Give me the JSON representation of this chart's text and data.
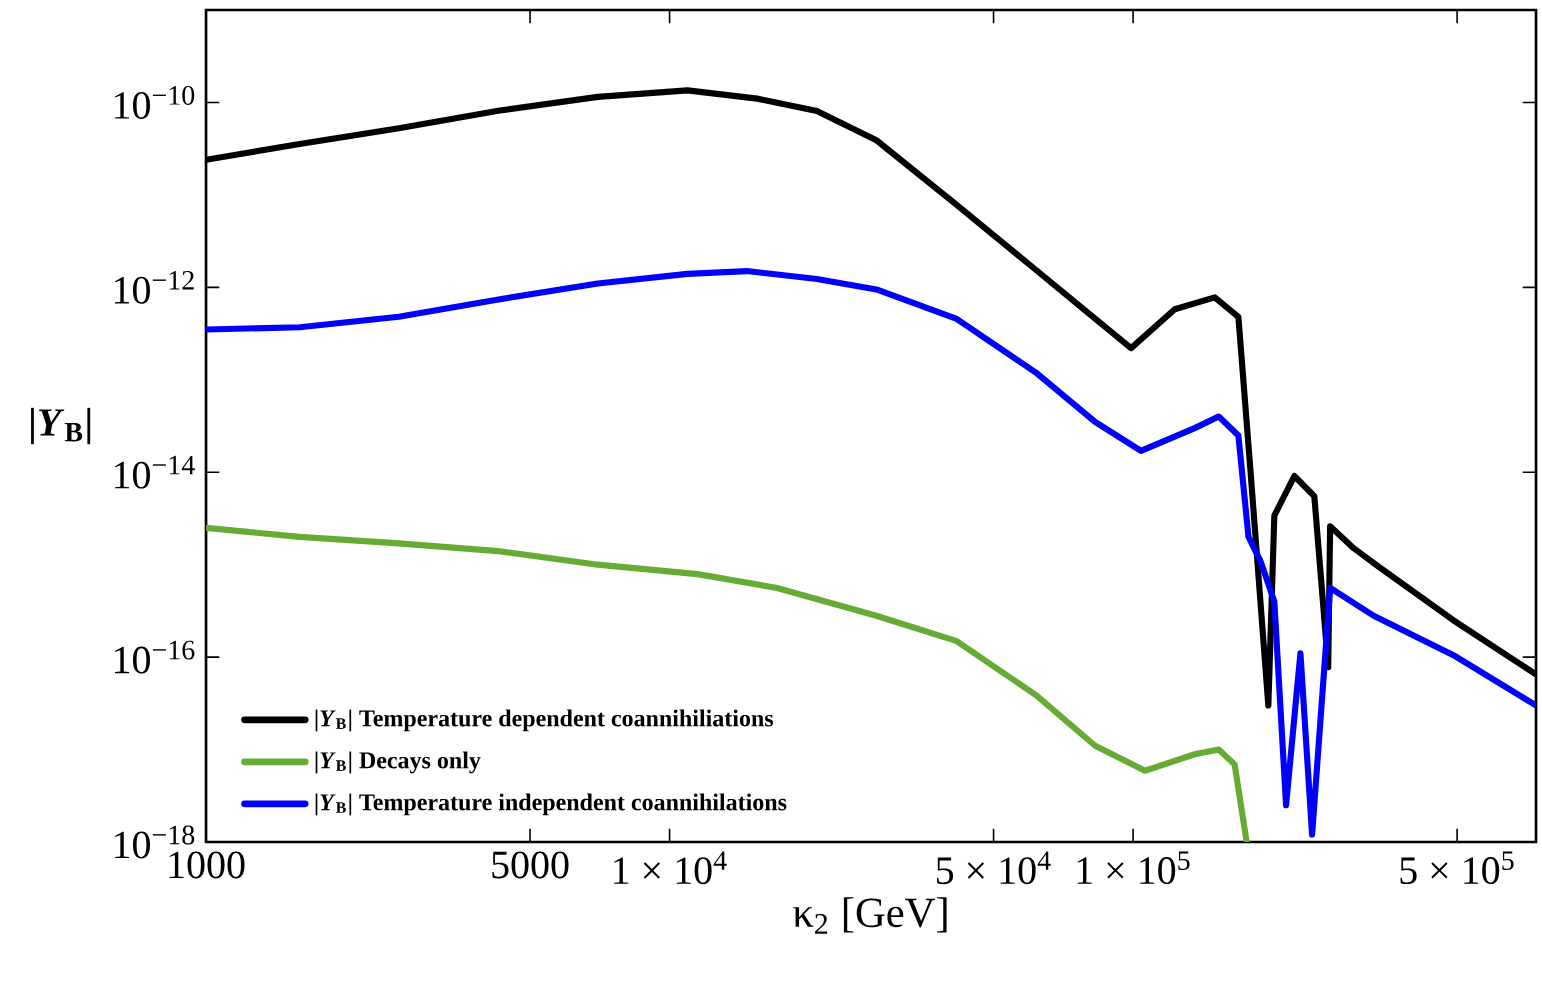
{
  "chart_data": {
    "type": "line",
    "xlabel": "κ$_{2}$ [GeV]",
    "ylabel": "|*Y*$_{B}$|",
    "log": "xy",
    "legend": "bottom left",
    "xlim": [
      1000,
      740000
    ],
    "ylim": [
      1e-18,
      1e-09
    ],
    "xticks": [
      1000,
      5000,
      {
        "value": 10000,
        "label": "1 × 10$^{4}$"
      },
      {
        "value": 50000,
        "label": "5 × 10$^{4}$"
      },
      {
        "value": 100000,
        "label": "1 × 10$^{5}$"
      },
      {
        "value": 500000,
        "label": "5 × 10$^{5}$"
      }
    ],
    "yticks": [
      {
        "value": 1e-10,
        "label": "10$^{−10}$"
      },
      {
        "value": 1e-12,
        "label": "10$^{−12}$"
      },
      {
        "value": 1e-14,
        "label": "10$^{−14}$"
      },
      {
        "value": 1e-16,
        "label": "10$^{−16}$"
      },
      {
        "value": 1e-18,
        "label": "10$^{−18}$"
      }
    ],
    "series": [
      {
        "name": "|*Y*$_{B}$| Temperature dependent coannihiliations",
        "color": "#000000",
        "x": [
          1000,
          1592,
          2606,
          4273,
          7000,
          10930,
          15450,
          20790,
          27940,
          41500,
          61650,
          82800,
          99000,
          123000,
          150000,
          168700,
          179000,
          195800,
          201700,
          222800,
          246000,
          263600,
          266100,
          299500,
          340500,
          491000,
          740000
        ],
        "values": [
          2.4e-11,
          3.55e-11,
          5.25e-11,
          8.13e-11,
          1.15e-10,
          1.35e-10,
          1.1e-10,
          8.1e-11,
          3.9e-11,
          7.9e-12,
          1.55e-12,
          4.6e-13,
          2.2e-13,
          5.8e-13,
          7.8e-13,
          4.8e-13,
          1.1e-14,
          3e-17,
          3.4e-15,
          9.1e-15,
          5.5e-15,
          7.8e-17,
          2.6e-15,
          1.5e-15,
          9.3e-16,
          2.5e-16,
          6.5e-17
        ]
      },
      {
        "name": "|*Y*$_{B}$| Decays only",
        "color": "#66ac34",
        "x": [
          1000,
          1592,
          2606,
          4273,
          7000,
          11480,
          17060,
          27940,
          41500,
          61650,
          82800,
          106100,
          135800,
          153000,
          165600,
          175800
        ],
        "values": [
          2.5e-15,
          2e-15,
          1.7e-15,
          1.4e-15,
          1e-15,
          7.9e-16,
          5.6e-16,
          2.8e-16,
          1.5e-16,
          3.9e-17,
          1.1e-17,
          5.9e-18,
          8.9e-18,
          1e-17,
          6.9e-18,
          1e-18
        ]
      },
      {
        "name": "|*Y*$_{B}$| Temperature independent coannihilations",
        "color": "#0000ff",
        "x": [
          1000,
          1592,
          2606,
          4273,
          7000,
          10930,
          14690,
          20790,
          27940,
          41500,
          61650,
          82800,
          104000,
          135800,
          153000,
          168700,
          177400,
          188200,
          201700,
          213800,
          229600,
          243300,
          266100,
          330400,
          491000,
          740000
        ],
        "values": [
          3.5e-13,
          3.7e-13,
          4.8e-13,
          7.4e-13,
          1.1e-12,
          1.4e-12,
          1.5e-12,
          1.23e-12,
          9.5e-13,
          4.6e-13,
          1.2e-13,
          3.5e-14,
          1.7e-14,
          3e-14,
          4e-14,
          2.5e-14,
          2e-15,
          1.1e-15,
          4e-16,
          2.5e-18,
          1.1e-16,
          1.2e-18,
          5.6e-16,
          2.8e-16,
          1.05e-16,
          3e-17
        ]
      }
    ]
  }
}
